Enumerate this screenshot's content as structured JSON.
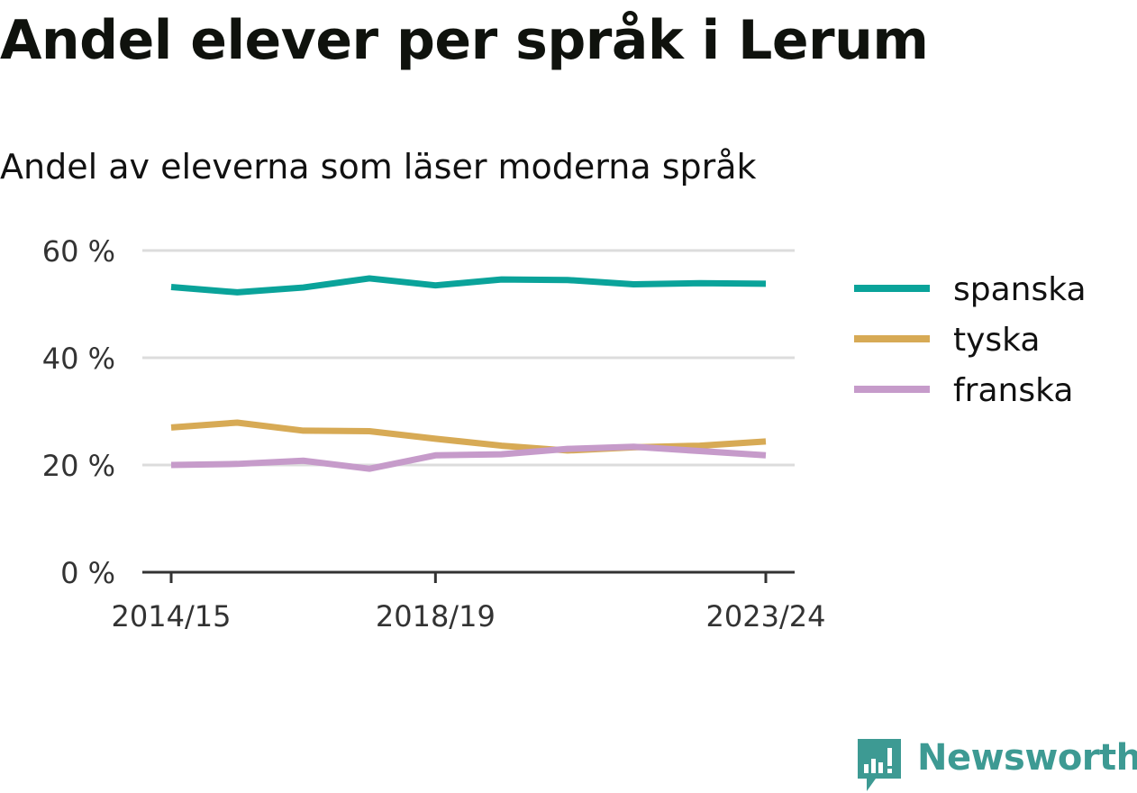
{
  "header": {
    "title": "Andel elever per språk i Lerum",
    "subtitle": "Andel av eleverna som läser moderna språk"
  },
  "brand": {
    "name": "Newsworthy",
    "color": "#3d9a93",
    "icon": "newsworthy-logo-icon"
  },
  "chart_data": {
    "type": "line",
    "title": "",
    "xlabel": "",
    "ylabel": "",
    "ylim": [
      0,
      60
    ],
    "yticks": [
      0,
      20,
      40,
      60
    ],
    "ytick_labels": [
      "0 %",
      "20 %",
      "40 %",
      "60 %"
    ],
    "x": [
      "2014/15",
      "2015/16",
      "2016/17",
      "2017/18",
      "2018/19",
      "2019/20",
      "2020/21",
      "2021/22",
      "2022/23",
      "2023/24"
    ],
    "xtick_labels": [
      "2014/15",
      "2018/19",
      "2023/24"
    ],
    "grid": true,
    "legend": "right",
    "series": [
      {
        "name": "spanska",
        "color": "#0aa39a",
        "values": [
          53.2,
          52.2,
          53.1,
          54.8,
          53.5,
          54.6,
          54.5,
          53.7,
          53.9,
          53.8
        ]
      },
      {
        "name": "tyska",
        "color": "#d7aa55",
        "values": [
          27.0,
          27.9,
          26.4,
          26.3,
          24.9,
          23.6,
          22.7,
          23.3,
          23.6,
          24.4
        ]
      },
      {
        "name": "franska",
        "color": "#c69bca",
        "values": [
          20.0,
          20.2,
          20.8,
          19.3,
          21.8,
          22.0,
          23.0,
          23.4,
          22.6,
          21.8
        ]
      }
    ]
  }
}
